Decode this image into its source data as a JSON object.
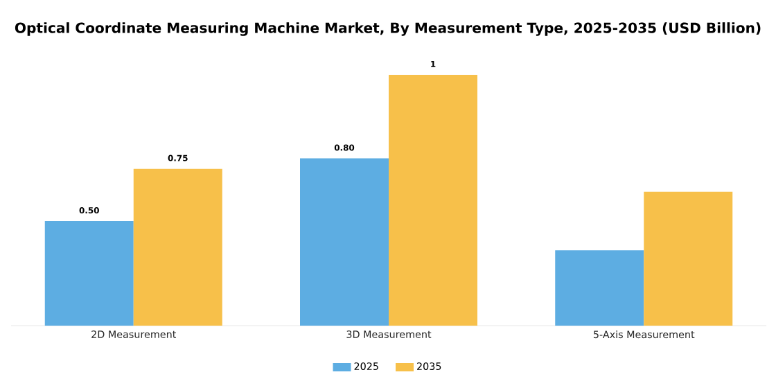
{
  "chart_data": {
    "type": "bar",
    "title": "Optical Coordinate Measuring Machine Market, By Measurement Type, 2025-2035 (USD Billion)",
    "categories": [
      "2D Measurement",
      "3D Measurement",
      "5-Axis Measurement"
    ],
    "series": [
      {
        "name": "2025",
        "color": "#5dade2",
        "values": [
          0.5,
          0.8,
          0.36
        ],
        "value_labels": [
          "0.50",
          "0.80",
          null
        ]
      },
      {
        "name": "2035",
        "color": "#f7c04a",
        "values": [
          0.75,
          1.2,
          0.64
        ],
        "value_labels": [
          "0.75",
          "1",
          null
        ]
      }
    ],
    "legend": "bottom",
    "tick_labels": "x"
  }
}
